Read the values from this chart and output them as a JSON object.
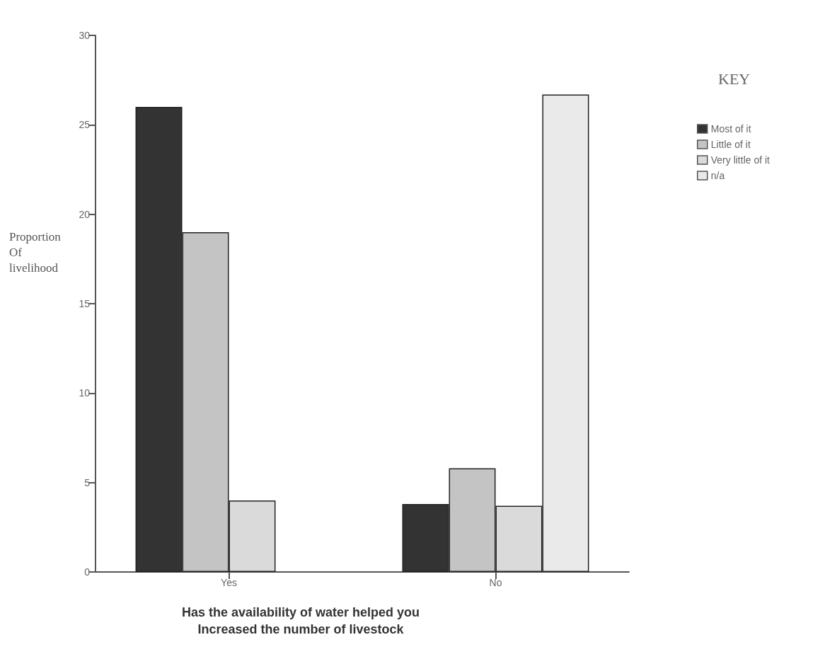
{
  "chart_data": {
    "type": "bar",
    "xlabel": "Has the availability of water helped you\nIncreased the number of livestock",
    "ylabel": "Proportion\nOf\nlivelihood",
    "legend_title": "KEY",
    "categories": [
      "Yes",
      "No"
    ],
    "series": [
      {
        "name": "Most of it",
        "color": "#333333",
        "values": [
          26,
          3.8
        ]
      },
      {
        "name": "Little of it",
        "color": "#c4c4c4",
        "values": [
          19,
          5.8
        ]
      },
      {
        "name": "Very little of it",
        "color": "#dadada",
        "values": [
          4,
          3.7
        ]
      },
      {
        "name": "n/a",
        "color": "#eaeaea",
        "values": [
          null,
          26.7
        ]
      }
    ],
    "ylim": [
      0,
      30
    ],
    "yticks": [
      0,
      5,
      10,
      15,
      20,
      25,
      30
    ],
    "grid": false,
    "legend": "top right"
  }
}
